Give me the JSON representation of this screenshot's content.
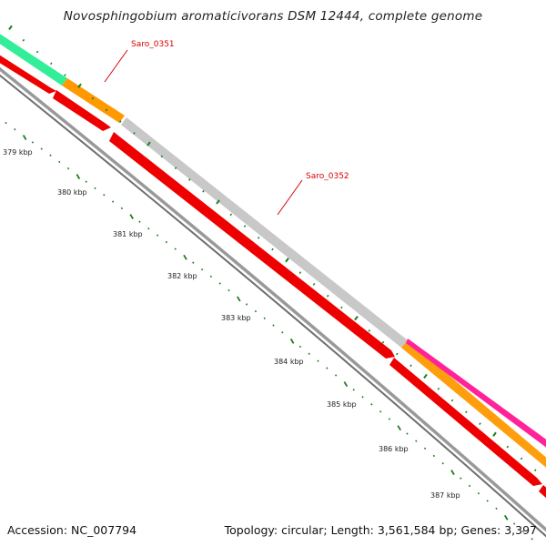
{
  "title": "Novosphingobium aromaticivorans DSM 12444, complete genome",
  "footer": {
    "accession": "Accession: NC_007794",
    "summary": "Topology: circular; Length: 3,561,584 bp; Genes: 3,397"
  },
  "colors": {
    "backbone": "#8c8c8c",
    "tick": "#1e7f1e",
    "forward_cds": "#ff0000",
    "label": "#dd0000"
  },
  "ruler": {
    "unit": "kbp",
    "labels": [
      "379 kbp",
      "380 kbp",
      "381 kbp",
      "382 kbp",
      "383 kbp",
      "384 kbp",
      "385 kbp",
      "386 kbp",
      "387 kbp"
    ]
  },
  "genes": [
    {
      "name": "Saro_0351",
      "track": "outer",
      "color": "#ff9900"
    },
    {
      "name": "Saro_0352",
      "track": "outer",
      "color": "#c8c8c8"
    },
    {
      "name": "",
      "track": "outer",
      "color": "#33ee99"
    },
    {
      "name": "",
      "track": "outer",
      "color": "#ff2299"
    }
  ]
}
